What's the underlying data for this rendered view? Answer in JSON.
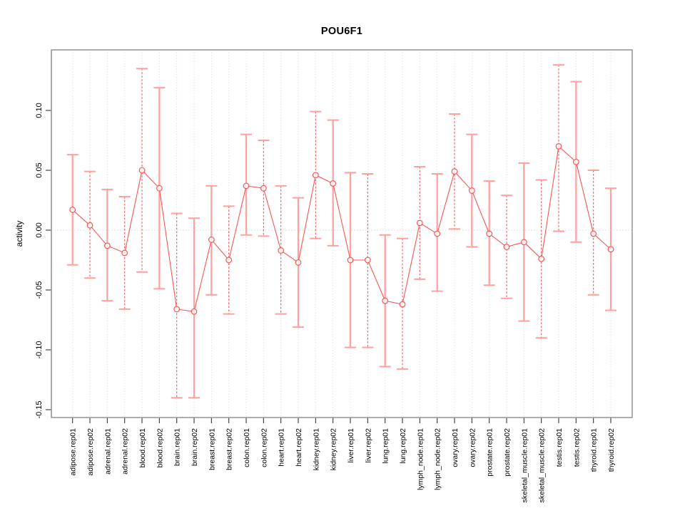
{
  "chart_data": {
    "type": "errorbar-line",
    "title": "POU6F1",
    "xlabel": "",
    "ylabel": "activity",
    "ylim": [
      -0.157,
      0.151
    ],
    "ytick_labels": [
      "0.10",
      "0.05",
      "0.00",
      "-0.05",
      "-0.10",
      "-0.15"
    ],
    "ytick_values": [
      0.1,
      0.05,
      0.0,
      -0.05,
      -0.1,
      -0.15
    ],
    "zero_reference_line": true,
    "grid": "vertical dotted line at each category",
    "legend_position": "none",
    "marker": "open-circle",
    "categories": [
      "adipose.rep01",
      "adipose.rep02",
      "adrenal.rep01",
      "adrenal.rep02",
      "blood.rep01",
      "blood.rep02",
      "brain.rep01",
      "brain.rep02",
      "breast.rep01",
      "breast.rep02",
      "colon.rep01",
      "colon.rep02",
      "heart.rep01",
      "heart.rep02",
      "kidney.rep01",
      "kidney.rep02",
      "liver.rep01",
      "liver.rep02",
      "lung.rep01",
      "lung.rep02",
      "lymph_node.rep01",
      "lymph_node.rep02",
      "ovary.rep01",
      "ovary.rep02",
      "prostate.rep01",
      "prostate.rep02",
      "skeletal_muscle.rep01",
      "skeletal_muscle.rep02",
      "testis.rep01",
      "testis.rep02",
      "thyroid.rep01",
      "thyroid.rep02"
    ],
    "points": [
      {
        "label": "adipose.rep01",
        "value": 0.017,
        "lo": -0.029,
        "hi": 0.063,
        "bar_style": "solid-light"
      },
      {
        "label": "adipose.rep02",
        "value": 0.004,
        "lo": -0.04,
        "hi": 0.049,
        "bar_style": "dashed-dark"
      },
      {
        "label": "adrenal.rep01",
        "value": -0.013,
        "lo": -0.059,
        "hi": 0.034,
        "bar_style": "solid-light"
      },
      {
        "label": "adrenal.rep02",
        "value": -0.019,
        "lo": -0.066,
        "hi": 0.028,
        "bar_style": "dashed-dark"
      },
      {
        "label": "blood.rep01",
        "value": 0.05,
        "lo": -0.035,
        "hi": 0.135,
        "bar_style": "dashed-dark"
      },
      {
        "label": "blood.rep02",
        "value": 0.035,
        "lo": -0.049,
        "hi": 0.119,
        "bar_style": "solid-light"
      },
      {
        "label": "brain.rep01",
        "value": -0.066,
        "lo": -0.14,
        "hi": 0.014,
        "bar_style": "dashed-dark"
      },
      {
        "label": "brain.rep02",
        "value": -0.068,
        "lo": -0.14,
        "hi": 0.01,
        "bar_style": "solid-light"
      },
      {
        "label": "breast.rep01",
        "value": -0.008,
        "lo": -0.054,
        "hi": 0.037,
        "bar_style": "solid-light"
      },
      {
        "label": "breast.rep02",
        "value": -0.025,
        "lo": -0.07,
        "hi": 0.02,
        "bar_style": "dashed-dark"
      },
      {
        "label": "colon.rep01",
        "value": 0.037,
        "lo": -0.004,
        "hi": 0.08,
        "bar_style": "solid-light"
      },
      {
        "label": "colon.rep02",
        "value": 0.035,
        "lo": -0.005,
        "hi": 0.075,
        "bar_style": "dashed-dark"
      },
      {
        "label": "heart.rep01",
        "value": -0.017,
        "lo": -0.07,
        "hi": 0.037,
        "bar_style": "dashed-dark"
      },
      {
        "label": "heart.rep02",
        "value": -0.027,
        "lo": -0.081,
        "hi": 0.027,
        "bar_style": "solid-light"
      },
      {
        "label": "kidney.rep01",
        "value": 0.046,
        "lo": -0.007,
        "hi": 0.099,
        "bar_style": "dashed-dark"
      },
      {
        "label": "kidney.rep02",
        "value": 0.039,
        "lo": -0.013,
        "hi": 0.092,
        "bar_style": "solid-light"
      },
      {
        "label": "liver.rep01",
        "value": -0.025,
        "lo": -0.098,
        "hi": 0.048,
        "bar_style": "solid-light"
      },
      {
        "label": "liver.rep02",
        "value": -0.025,
        "lo": -0.098,
        "hi": 0.047,
        "bar_style": "dashed-dark"
      },
      {
        "label": "lung.rep01",
        "value": -0.059,
        "lo": -0.114,
        "hi": -0.004,
        "bar_style": "solid-light"
      },
      {
        "label": "lung.rep02",
        "value": -0.062,
        "lo": -0.116,
        "hi": -0.007,
        "bar_style": "dashed-dark"
      },
      {
        "label": "lymph_node.rep01",
        "value": 0.006,
        "lo": -0.041,
        "hi": 0.053,
        "bar_style": "dashed-dark"
      },
      {
        "label": "lymph_node.rep02",
        "value": -0.003,
        "lo": -0.051,
        "hi": 0.047,
        "bar_style": "solid-light"
      },
      {
        "label": "ovary.rep01",
        "value": 0.049,
        "lo": 0.001,
        "hi": 0.097,
        "bar_style": "dashed-dark"
      },
      {
        "label": "ovary.rep02",
        "value": 0.033,
        "lo": -0.014,
        "hi": 0.08,
        "bar_style": "solid-light"
      },
      {
        "label": "prostate.rep01",
        "value": -0.003,
        "lo": -0.046,
        "hi": 0.041,
        "bar_style": "solid-light"
      },
      {
        "label": "prostate.rep02",
        "value": -0.014,
        "lo": -0.057,
        "hi": 0.029,
        "bar_style": "dashed-dark"
      },
      {
        "label": "skeletal_muscle.rep01",
        "value": -0.01,
        "lo": -0.076,
        "hi": 0.056,
        "bar_style": "solid-light"
      },
      {
        "label": "skeletal_muscle.rep02",
        "value": -0.024,
        "lo": -0.09,
        "hi": 0.042,
        "bar_style": "dashed-dark"
      },
      {
        "label": "testis.rep01",
        "value": 0.07,
        "lo": -0.001,
        "hi": 0.138,
        "bar_style": "dashed-dark"
      },
      {
        "label": "testis.rep02",
        "value": 0.057,
        "lo": -0.01,
        "hi": 0.124,
        "bar_style": "solid-light"
      },
      {
        "label": "thyroid.rep01",
        "value": -0.003,
        "lo": -0.054,
        "hi": 0.05,
        "bar_style": "dashed-dark"
      },
      {
        "label": "thyroid.rep02",
        "value": -0.016,
        "lo": -0.067,
        "hi": 0.035,
        "bar_style": "solid-light"
      }
    ]
  },
  "colors": {
    "marker_and_line": "#f85555",
    "bar_solid_light": "#ffa2a2",
    "bar_dashed_dark": "#ee5a5a",
    "bar_cap": "#ff9f9f",
    "gridline": "#d6d6d6",
    "zero_line": "#dddddd",
    "plot_border": "#999999",
    "tick": "#333333",
    "text": "#000000",
    "background": "#ffffff"
  }
}
